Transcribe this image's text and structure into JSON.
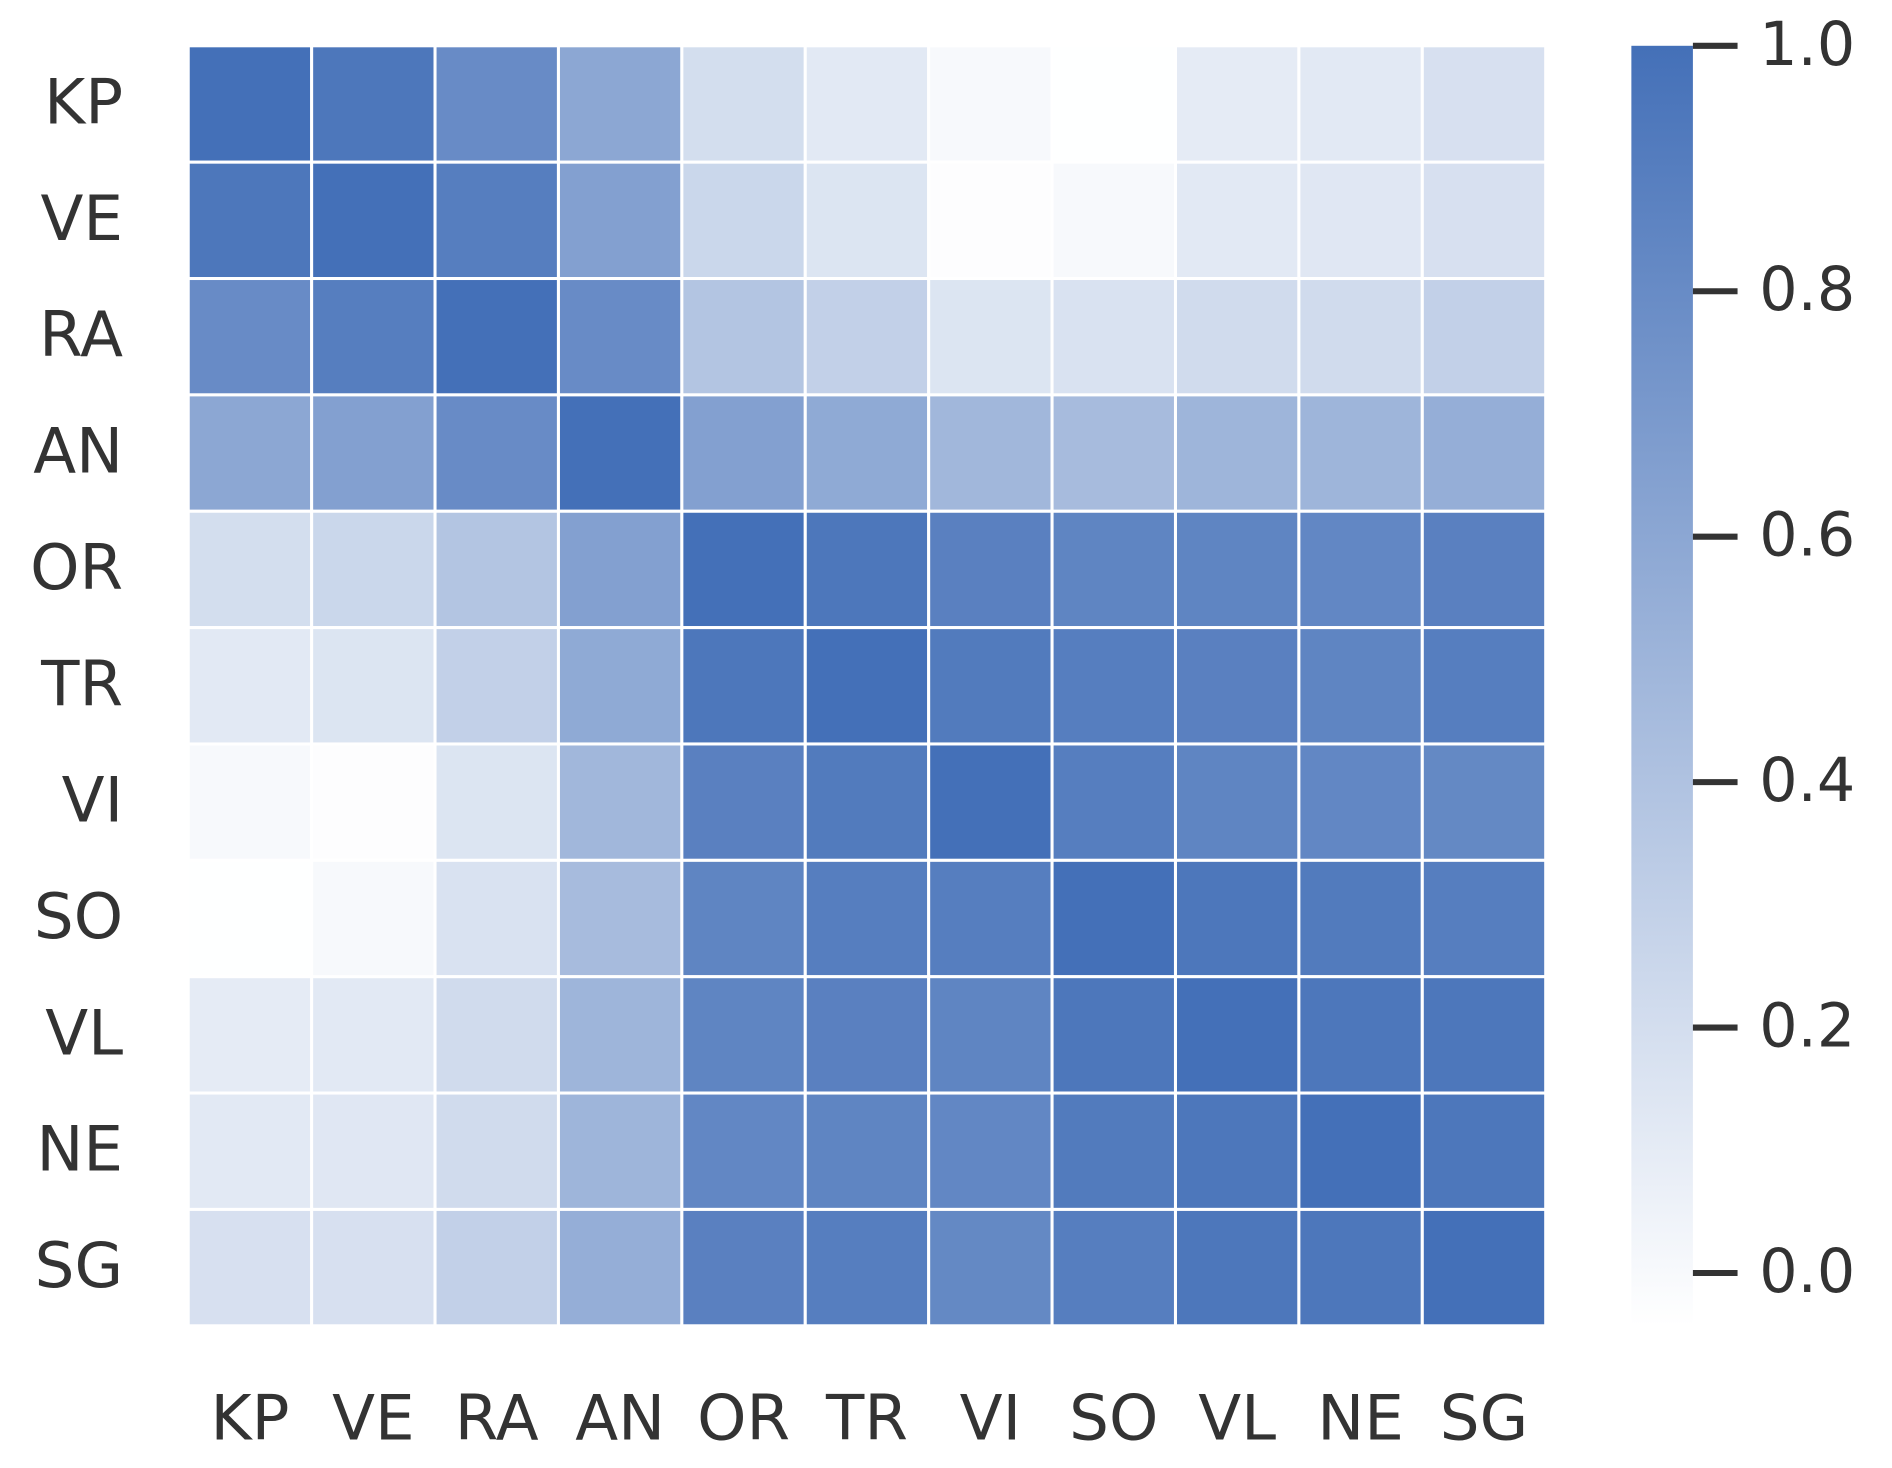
{
  "chart_data": {
    "type": "heatmap",
    "categories": [
      "KP",
      "VE",
      "RA",
      "AN",
      "OR",
      "TR",
      "VI",
      "SO",
      "VL",
      "NE",
      "SG"
    ],
    "values": [
      [
        1.0,
        0.95,
        0.8,
        0.6,
        0.2,
        0.12,
        0.0,
        -0.04,
        0.1,
        0.12,
        0.18
      ],
      [
        0.95,
        1.0,
        0.9,
        0.65,
        0.25,
        0.15,
        -0.03,
        0.0,
        0.12,
        0.13,
        0.18
      ],
      [
        0.8,
        0.9,
        1.0,
        0.8,
        0.38,
        0.3,
        0.15,
        0.17,
        0.22,
        0.22,
        0.3
      ],
      [
        0.6,
        0.65,
        0.8,
        1.0,
        0.65,
        0.58,
        0.48,
        0.45,
        0.5,
        0.5,
        0.55
      ],
      [
        0.2,
        0.25,
        0.38,
        0.65,
        1.0,
        0.95,
        0.88,
        0.85,
        0.85,
        0.83,
        0.88
      ],
      [
        0.12,
        0.15,
        0.3,
        0.58,
        0.95,
        1.0,
        0.92,
        0.9,
        0.88,
        0.85,
        0.9
      ],
      [
        0.0,
        -0.03,
        0.15,
        0.48,
        0.88,
        0.92,
        1.0,
        0.9,
        0.85,
        0.83,
        0.82
      ],
      [
        -0.04,
        0.0,
        0.17,
        0.45,
        0.85,
        0.9,
        0.9,
        1.0,
        0.95,
        0.92,
        0.9
      ],
      [
        0.1,
        0.12,
        0.22,
        0.5,
        0.85,
        0.88,
        0.85,
        0.95,
        1.0,
        0.95,
        0.95
      ],
      [
        0.12,
        0.13,
        0.22,
        0.5,
        0.83,
        0.85,
        0.83,
        0.92,
        0.95,
        1.0,
        0.95
      ],
      [
        0.18,
        0.18,
        0.3,
        0.55,
        0.88,
        0.9,
        0.82,
        0.9,
        0.95,
        0.95,
        1.0
      ]
    ],
    "colormap": [
      "#ffffff",
      "#4470b8"
    ],
    "clim": [
      -0.043,
      1.0
    ],
    "cticks": [
      {
        "value": 0,
        "label": "0.0"
      },
      0.2,
      0.4,
      0.6,
      0.8,
      {
        "value": 1,
        "label": "1.0"
      }
    ]
  }
}
